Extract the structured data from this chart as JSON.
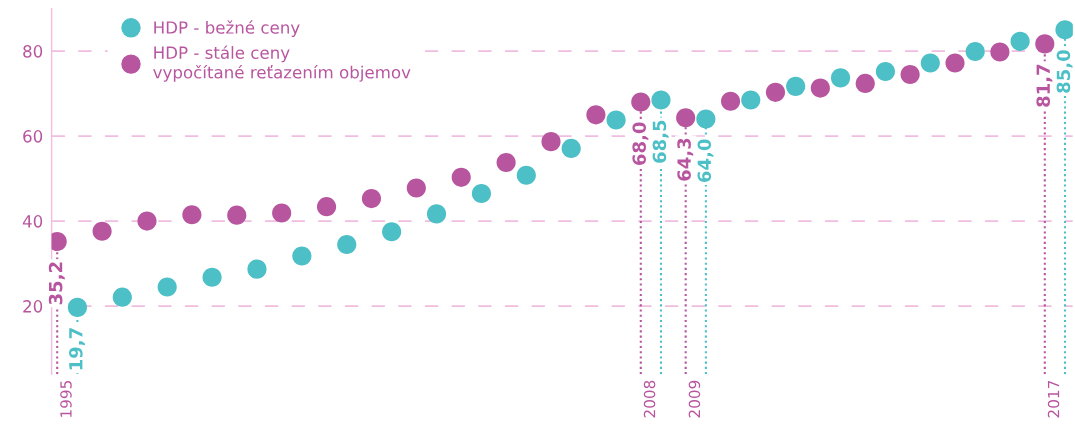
{
  "chart_data": {
    "type": "scatter",
    "categories": [
      "1995",
      null,
      null,
      null,
      null,
      null,
      null,
      null,
      null,
      null,
      null,
      null,
      null,
      "2008",
      "2009",
      null,
      null,
      null,
      null,
      null,
      null,
      null,
      "2017"
    ],
    "series": [
      {
        "name": "HDP - bežné ceny",
        "color": "#4dbfc6",
        "values": [
          19.7,
          22.1,
          24.5,
          26.8,
          28.7,
          31.8,
          34.5,
          37.5,
          41.7,
          46.5,
          50.8,
          57.1,
          63.8,
          68.5,
          64.0,
          68.5,
          71.7,
          73.7,
          75.2,
          77.2,
          79.9,
          82.3,
          85.0
        ],
        "value_labels": [
          "19,7",
          null,
          null,
          null,
          null,
          null,
          null,
          null,
          null,
          null,
          null,
          null,
          null,
          "68,5",
          "64,0",
          null,
          null,
          null,
          null,
          null,
          null,
          null,
          "85,0"
        ]
      },
      {
        "name": "HDP - stále ceny\nvypočítané reťazením objemov",
        "color": "#b8559f",
        "values": [
          35.2,
          37.6,
          40.0,
          41.5,
          41.4,
          41.9,
          43.4,
          45.3,
          47.8,
          50.3,
          53.8,
          58.7,
          65.0,
          68.0,
          64.3,
          68.2,
          70.3,
          71.3,
          72.4,
          74.5,
          77.2,
          79.8,
          81.7
        ],
        "value_labels": [
          "35,2",
          null,
          null,
          null,
          null,
          null,
          null,
          null,
          null,
          null,
          null,
          null,
          null,
          "68,0",
          "64,3",
          null,
          null,
          null,
          null,
          null,
          null,
          null,
          "81,7"
        ]
      }
    ],
    "ylim": [
      4,
      90
    ],
    "yticks": [
      20,
      40,
      60,
      80
    ],
    "grid": "y",
    "legend": "top left",
    "marker": "circle"
  }
}
